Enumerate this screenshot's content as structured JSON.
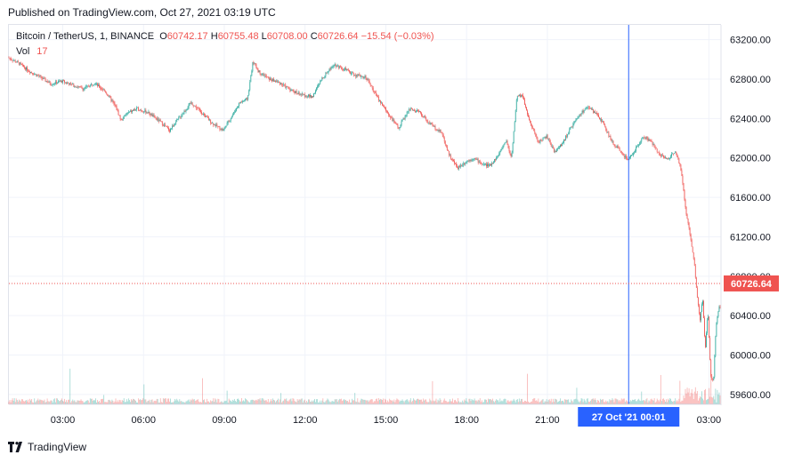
{
  "header": {
    "published": "Published on TradingView.com, Oct 27, 2021 03:19 UTC"
  },
  "legend": {
    "symbol": "Bitcoin / TetherUS, 1, BINANCE",
    "o_label": "O",
    "o": "60742.17",
    "h_label": "H",
    "h": "60755.48",
    "l_label": "L",
    "l": "60708.00",
    "c_label": "C",
    "c": "60726.64",
    "change": "−15.54 (−0.03%)",
    "vol_label": "Vol",
    "vol": "17"
  },
  "footer": {
    "brand": "TradingView"
  },
  "colors": {
    "up": "#26a69a",
    "down": "#ef5350",
    "crosshair": "#2962ff",
    "label_bg": "#2962ff",
    "price_line": "#ef5350"
  },
  "chart_data": {
    "type": "candlestick",
    "title": "Bitcoin / TetherUS, 1, BINANCE",
    "ylim": [
      59500,
      63350
    ],
    "y_ticks": [
      63200,
      62800,
      62400,
      62000,
      61600,
      61200,
      60800,
      60400,
      60000,
      59600
    ],
    "y_tick_labels": [
      "63200.00",
      "62800.00",
      "62400.00",
      "62000.00",
      "61600.00",
      "61200.00",
      "60800.00",
      "60400.00",
      "60000.00",
      "59600.00"
    ],
    "x_ticks": [
      "03:00",
      "06:00",
      "09:00",
      "12:00",
      "15:00",
      "18:00",
      "21:00",
      "03:00"
    ],
    "x_tick_hours": [
      3,
      6,
      9,
      12,
      15,
      18,
      21,
      27
    ],
    "x_range_hours": [
      1.0,
      27.45
    ],
    "crosshair": {
      "hour": 24.02,
      "label": "27 Oct '21   00:01"
    },
    "last_price": {
      "value": 60726.64,
      "label": "60726.64"
    },
    "price_path": [
      [
        1.0,
        63020
      ],
      [
        1.4,
        62960
      ],
      [
        1.8,
        62880
      ],
      [
        2.2,
        62820
      ],
      [
        2.6,
        62750
      ],
      [
        3.0,
        62780
      ],
      [
        3.4,
        62740
      ],
      [
        3.8,
        62700
      ],
      [
        4.2,
        62760
      ],
      [
        4.6,
        62680
      ],
      [
        5.0,
        62520
      ],
      [
        5.2,
        62380
      ],
      [
        5.4,
        62450
      ],
      [
        5.8,
        62500
      ],
      [
        6.2,
        62460
      ],
      [
        6.6,
        62380
      ],
      [
        7.0,
        62280
      ],
      [
        7.4,
        62420
      ],
      [
        7.8,
        62560
      ],
      [
        8.2,
        62460
      ],
      [
        8.6,
        62350
      ],
      [
        9.0,
        62280
      ],
      [
        9.3,
        62420
      ],
      [
        9.6,
        62560
      ],
      [
        9.9,
        62600
      ],
      [
        10.1,
        62980
      ],
      [
        10.3,
        62880
      ],
      [
        10.7,
        62800
      ],
      [
        11.1,
        62760
      ],
      [
        11.5,
        62690
      ],
      [
        11.9,
        62640
      ],
      [
        12.3,
        62620
      ],
      [
        12.7,
        62820
      ],
      [
        13.1,
        62950
      ],
      [
        13.5,
        62900
      ],
      [
        13.9,
        62840
      ],
      [
        14.3,
        62820
      ],
      [
        14.7,
        62620
      ],
      [
        15.1,
        62460
      ],
      [
        15.5,
        62300
      ],
      [
        15.9,
        62500
      ],
      [
        16.3,
        62460
      ],
      [
        16.7,
        62340
      ],
      [
        17.1,
        62260
      ],
      [
        17.4,
        62020
      ],
      [
        17.7,
        61900
      ],
      [
        18.0,
        61960
      ],
      [
        18.3,
        62000
      ],
      [
        18.6,
        61940
      ],
      [
        18.9,
        61920
      ],
      [
        19.2,
        62020
      ],
      [
        19.5,
        62180
      ],
      [
        19.7,
        62000
      ],
      [
        19.9,
        62620
      ],
      [
        20.1,
        62640
      ],
      [
        20.4,
        62350
      ],
      [
        20.7,
        62160
      ],
      [
        21.0,
        62220
      ],
      [
        21.3,
        62060
      ],
      [
        21.6,
        62150
      ],
      [
        21.9,
        62300
      ],
      [
        22.2,
        62420
      ],
      [
        22.5,
        62520
      ],
      [
        22.8,
        62460
      ],
      [
        23.1,
        62360
      ],
      [
        23.4,
        62180
      ],
      [
        23.7,
        62080
      ],
      [
        24.0,
        61980
      ],
      [
        24.3,
        62080
      ],
      [
        24.6,
        62220
      ],
      [
        24.9,
        62160
      ],
      [
        25.2,
        62040
      ],
      [
        25.5,
        61980
      ],
      [
        25.8,
        62080
      ],
      [
        26.0,
        61880
      ],
      [
        26.2,
        61420
      ],
      [
        26.35,
        61200
      ],
      [
        26.5,
        60900
      ],
      [
        26.6,
        60600
      ],
      [
        26.7,
        60350
      ],
      [
        26.8,
        60580
      ],
      [
        26.9,
        60050
      ],
      [
        27.0,
        60450
      ],
      [
        27.1,
        59800
      ],
      [
        27.2,
        59720
      ],
      [
        27.3,
        60300
      ],
      [
        27.4,
        60480
      ]
    ]
  }
}
